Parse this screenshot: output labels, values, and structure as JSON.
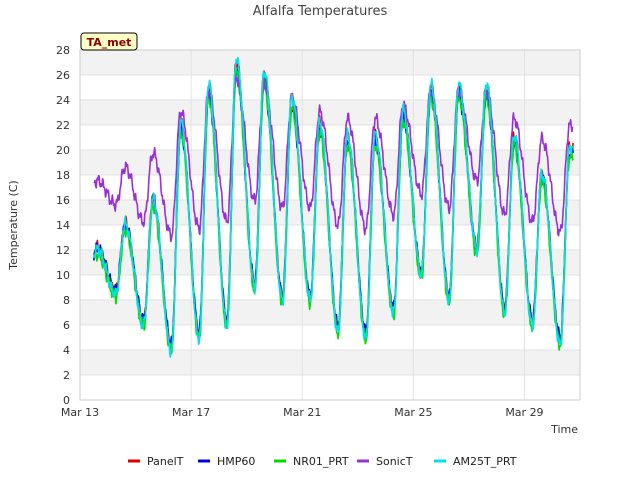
{
  "chart_data": {
    "type": "line",
    "title": "Alfalfa Temperatures",
    "xlabel": "Time",
    "ylabel": "Temperature (C)",
    "badge": "TA_met",
    "x_unit": "day of March",
    "xlim": [
      13,
      31
    ],
    "ylim": [
      0,
      28
    ],
    "y_ticks": [
      0,
      2,
      4,
      6,
      8,
      10,
      12,
      14,
      16,
      18,
      20,
      22,
      24,
      26,
      28
    ],
    "x_ticks": [
      {
        "value": 13,
        "label": "Mar 13"
      },
      {
        "value": 17,
        "label": "Mar 17"
      },
      {
        "value": 21,
        "label": "Mar 21"
      },
      {
        "value": 25,
        "label": "Mar 25"
      },
      {
        "value": 29,
        "label": "Mar 29"
      }
    ],
    "grid": true,
    "legend_position": "bottom",
    "daily_extremes": {
      "days": [
        13.5,
        14.5,
        15.5,
        16.5,
        17.5,
        18.5,
        19.5,
        20.5,
        21.5,
        22.5,
        23.5,
        24.5,
        25.5,
        26.5,
        27.5,
        28.5,
        29.5,
        30.5
      ],
      "min": [
        10.5,
        8.5,
        6.0,
        4.0,
        5.0,
        6.0,
        9.0,
        8.0,
        8.0,
        5.5,
        5.0,
        7.0,
        10.0,
        8.0,
        12.0,
        7.0,
        6.0,
        4.5
      ],
      "max": [
        12.0,
        14.0,
        16.0,
        22.0,
        25.0,
        27.0,
        26.0,
        24.0,
        22.0,
        21.0,
        21.0,
        23.0,
        25.0,
        25.0,
        25.0,
        21.0,
        18.0,
        20.0
      ],
      "min_hour": 7,
      "max_hour": 15
    },
    "series": [
      {
        "name": "PanelT",
        "color": "#e00000",
        "amp": 1.0,
        "bias": 0.2
      },
      {
        "name": "HMP60",
        "color": "#0000dd",
        "amp": 0.95,
        "bias": 0.0
      },
      {
        "name": "NR01_PRT",
        "color": "#00dd00",
        "amp": 0.97,
        "bias": -0.4
      },
      {
        "name": "SonicT",
        "color": "#9a30d8",
        "amp": 0.55,
        "bias": 4.5
      },
      {
        "name": "AM25T_PRT",
        "color": "#00e0e8",
        "amp": 1.02,
        "bias": 0.1
      }
    ]
  }
}
